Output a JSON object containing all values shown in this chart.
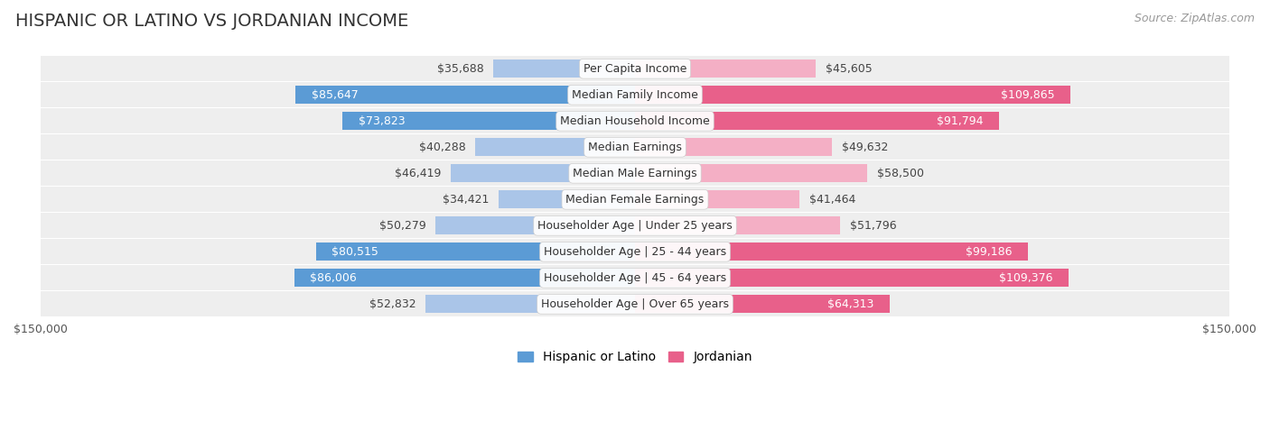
{
  "title": "HISPANIC OR LATINO VS JORDANIAN INCOME",
  "source": "Source: ZipAtlas.com",
  "categories": [
    "Per Capita Income",
    "Median Family Income",
    "Median Household Income",
    "Median Earnings",
    "Median Male Earnings",
    "Median Female Earnings",
    "Householder Age | Under 25 years",
    "Householder Age | 25 - 44 years",
    "Householder Age | 45 - 64 years",
    "Householder Age | Over 65 years"
  ],
  "hispanic_values": [
    35688,
    85647,
    73823,
    40288,
    46419,
    34421,
    50279,
    80515,
    86006,
    52832
  ],
  "jordanian_values": [
    45605,
    109865,
    91794,
    49632,
    58500,
    41464,
    51796,
    99186,
    109376,
    64313
  ],
  "hispanic_color_strong": "#5b9bd5",
  "hispanic_color_light": "#aac5e8",
  "jordanian_color_strong": "#e8608a",
  "jordanian_color_light": "#f4afc5",
  "background_color": "#ffffff",
  "row_bg_even": "#f0f0f0",
  "row_bg_odd": "#f8f8f8",
  "xlim": 150000,
  "xlabel_left": "$150,000",
  "xlabel_right": "$150,000",
  "legend_hispanic": "Hispanic or Latino",
  "legend_jordanian": "Jordanian",
  "title_fontsize": 14,
  "source_fontsize": 9,
  "bar_fontsize": 9,
  "category_fontsize": 9,
  "legend_fontsize": 10,
  "strong_threshold": 60000,
  "label_threshold": 50000
}
